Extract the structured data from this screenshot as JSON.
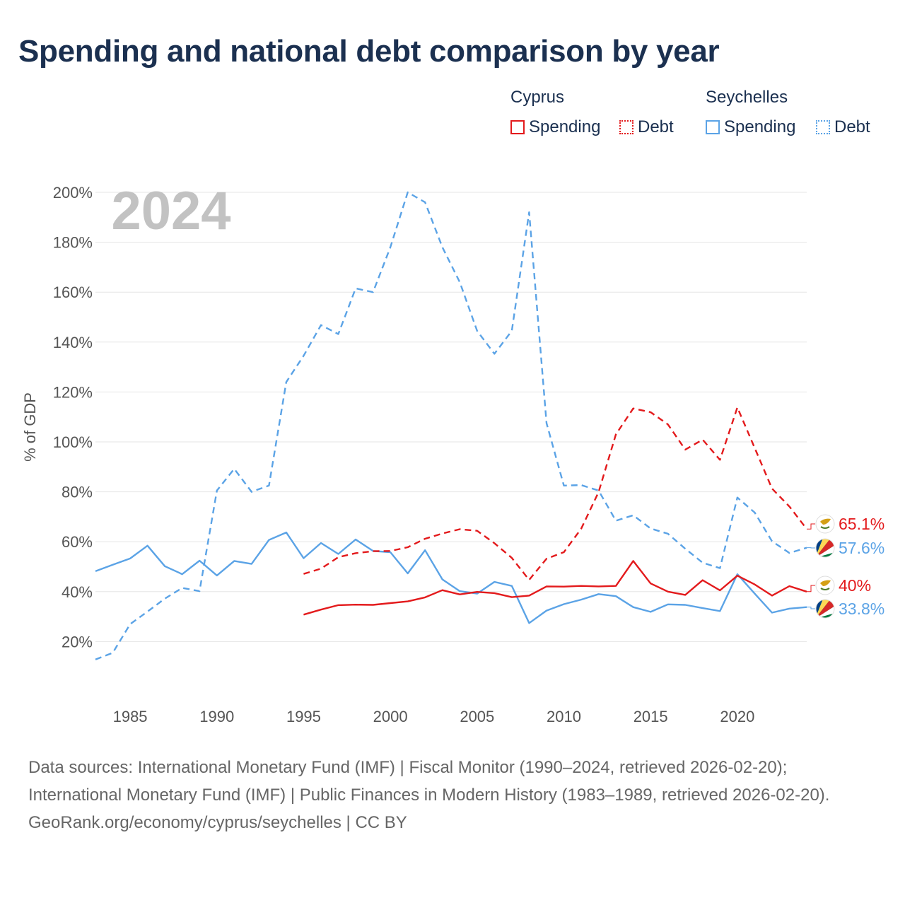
{
  "title": "Spending and national debt comparison by year",
  "legend": {
    "groups": [
      {
        "name": "Cyprus",
        "color": "#e31a1c",
        "items": [
          "Spending",
          "Debt"
        ]
      },
      {
        "name": "Seychelles",
        "color": "#5ba3e6",
        "items": [
          "Spending",
          "Debt"
        ]
      }
    ]
  },
  "footer": {
    "sources": "Data sources: International Monetary Fund (IMF) | Fiscal Monitor (1990–2024, retrieved 2026-02-20); International Monetary Fund (IMF) | Public Finances in Modern History (1983–1989, retrieved 2026-02-20).",
    "credit": "GeoRank.org/economy/cyprus/seychelles | CC BY"
  },
  "flags": [
    "cyprus-flag-icon",
    "seychelles-flag-icon"
  ],
  "chart_data": {
    "type": "line",
    "year_label": "2024",
    "ylabel": "% of GDP",
    "ylim": [
      0,
      200
    ],
    "xlim": [
      1983,
      2024
    ],
    "y_ticks": [
      20,
      40,
      60,
      80,
      100,
      120,
      140,
      160,
      180,
      200
    ],
    "y_tick_labels": [
      "20%",
      "40%",
      "60%",
      "80%",
      "100%",
      "120%",
      "140%",
      "160%",
      "180%",
      "200%"
    ],
    "x_ticks": [
      1985,
      1990,
      1995,
      2000,
      2005,
      2010,
      2015,
      2020
    ],
    "x_tick_labels": [
      "1985",
      "1990",
      "1995",
      "2000",
      "2005",
      "2010",
      "2015",
      "2020"
    ],
    "series": [
      {
        "name": "Seychelles Debt",
        "country": "Seychelles",
        "measure": "Debt",
        "color": "#5ba3e6",
        "dash": "dashed",
        "end_label": "57.6%",
        "x": [
          1983,
          1984,
          1985,
          1986,
          1987,
          1988,
          1989,
          1990,
          1991,
          1992,
          1993,
          1994,
          1995,
          1996,
          1997,
          1998,
          1999,
          2000,
          2001,
          2002,
          2003,
          2004,
          2005,
          2006,
          2007,
          2008,
          2009,
          2010,
          2011,
          2012,
          2013,
          2014,
          2015,
          2016,
          2017,
          2018,
          2019,
          2020,
          2021,
          2022,
          2023,
          2024
        ],
        "values": [
          12.8,
          15.5,
          27,
          32,
          37.2,
          41.5,
          40.2,
          80.5,
          89.2,
          80,
          82.5,
          124,
          134.5,
          146.8,
          143.2,
          161.5,
          160,
          178,
          200,
          196,
          178,
          164,
          144.5,
          135.3,
          144.5,
          192,
          107.5,
          82.5,
          82.7,
          80.5,
          68.4,
          70.6,
          65.3,
          63.2,
          57.2,
          51.6,
          49.4,
          77.7,
          71.7,
          60.2,
          55.5,
          57.6
        ]
      },
      {
        "name": "Seychelles Spending",
        "country": "Seychelles",
        "measure": "Spending",
        "color": "#5ba3e6",
        "dash": "solid",
        "end_label": "33.8%",
        "x": [
          1983,
          1984,
          1985,
          1986,
          1987,
          1988,
          1989,
          1990,
          1991,
          1992,
          1993,
          1994,
          1995,
          1996,
          1997,
          1998,
          1999,
          2000,
          2001,
          2002,
          2003,
          2004,
          2005,
          2006,
          2007,
          2008,
          2009,
          2010,
          2011,
          2012,
          2013,
          2014,
          2015,
          2016,
          2017,
          2018,
          2019,
          2020,
          2021,
          2022,
          2023,
          2024
        ],
        "values": [
          48.2,
          50.8,
          53.3,
          58.4,
          50.2,
          47,
          52.4,
          46.5,
          52.3,
          51.1,
          60.7,
          63.7,
          53.4,
          59.5,
          55.1,
          60.9,
          56.3,
          55.8,
          47.3,
          56.6,
          44.9,
          40.2,
          39.2,
          43.9,
          42.3,
          27.4,
          32.4,
          35,
          36.8,
          39,
          38.2,
          33.8,
          31.9,
          34.9,
          34.7,
          33.4,
          32.2,
          47,
          39.2,
          31.6,
          33.2,
          33.8
        ]
      },
      {
        "name": "Cyprus Debt",
        "country": "Cyprus",
        "measure": "Debt",
        "color": "#e31a1c",
        "dash": "dashed",
        "end_label": "65.1%",
        "x": [
          1995,
          1996,
          1997,
          1998,
          1999,
          2000,
          2001,
          2002,
          2003,
          2004,
          2005,
          2006,
          2007,
          2008,
          2009,
          2010,
          2011,
          2012,
          2013,
          2014,
          2015,
          2016,
          2017,
          2018,
          2019,
          2020,
          2021,
          2022,
          2023,
          2024
        ],
        "values": [
          47.1,
          49.2,
          53.8,
          55.4,
          56.2,
          56.3,
          57.8,
          61.2,
          63.3,
          65,
          64.4,
          59.4,
          53.5,
          44.7,
          53.2,
          55.8,
          65.2,
          79.9,
          103,
          113.4,
          111.9,
          107,
          96.9,
          100.9,
          92.8,
          113.8,
          97.6,
          81.3,
          74.1,
          65.1
        ]
      },
      {
        "name": "Cyprus Spending",
        "country": "Cyprus",
        "measure": "Spending",
        "color": "#e31a1c",
        "dash": "solid",
        "end_label": "40%",
        "x": [
          1995,
          1996,
          1997,
          1998,
          1999,
          2000,
          2001,
          2002,
          2003,
          2004,
          2005,
          2006,
          2007,
          2008,
          2009,
          2010,
          2011,
          2012,
          2013,
          2014,
          2015,
          2016,
          2017,
          2018,
          2019,
          2020,
          2021,
          2022,
          2023,
          2024
        ],
        "values": [
          30.8,
          32.8,
          34.6,
          34.8,
          34.7,
          35.4,
          36.1,
          37.7,
          40.6,
          38.9,
          39.9,
          39.4,
          37.8,
          38.4,
          42.1,
          42,
          42.3,
          42.1,
          42.3,
          52.3,
          43.3,
          40,
          38.7,
          44.6,
          40.5,
          46.4,
          42.9,
          38.4,
          42.2,
          40
        ]
      }
    ]
  }
}
